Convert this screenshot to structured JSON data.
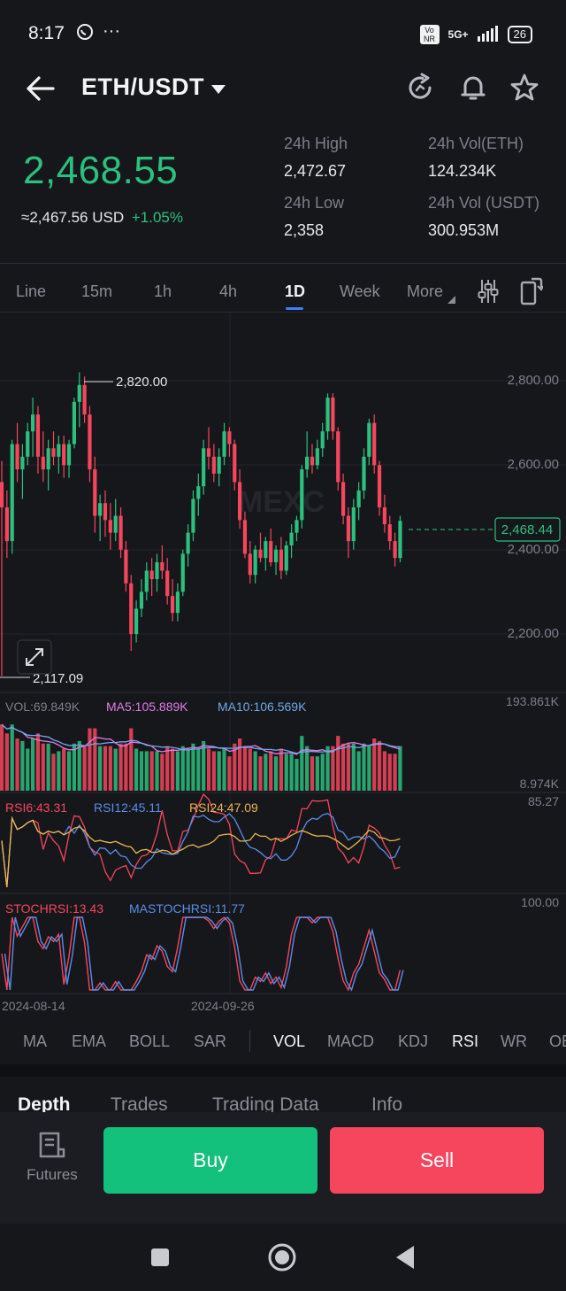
{
  "status_bar": {
    "time": "8:17",
    "network": "5G+",
    "battery": "26",
    "volte": "Vo NR"
  },
  "header": {
    "pair": "ETH/USDT"
  },
  "ticker": {
    "last_price": "2,468.55",
    "usd_price": "≈2,467.56 USD",
    "change_pct": "+1.05%",
    "high_label": "24h High",
    "high": "2,472.67",
    "low_label": "24h Low",
    "low": "2,358",
    "vol_eth_label": "24h Vol(ETH)",
    "vol_eth": "124.234K",
    "vol_usdt_label": "24h Vol (USDT)",
    "vol_usdt": "300.953M"
  },
  "timeframes": [
    "Line",
    "15m",
    "1h",
    "4h",
    "1D",
    "Week",
    "More"
  ],
  "active_timeframe": "1D",
  "chart": {
    "watermark": "MEXC",
    "y_ticks": [
      "2,800.00",
      "2,600.00",
      "2,400.00",
      "2,200.00"
    ],
    "current_price_tag": "2,468.44",
    "high_marker": "2,820.00",
    "low_marker": "2,117.09",
    "vol_legend": {
      "vol": "VOL:69.849K",
      "ma5": "MA5:105.889K",
      "ma10": "MA10:106.569K",
      "max": "193.861K",
      "min": "8.974K"
    },
    "rsi_legend": {
      "rsi6": "RSI6:43.31",
      "rsi12": "RSI12:45.11",
      "rsi24": "RSI24:47.09",
      "max": "85.27"
    },
    "stoch_legend": {
      "stoch": "STOCHRSI:13.43",
      "mastoch": "MASTOCHRSI:11.77",
      "max": "100.00"
    },
    "x_dates": [
      "2024-08-14",
      "2024-09-26"
    ]
  },
  "indicators": [
    "MA",
    "EMA",
    "BOLL",
    "SAR",
    "VOL",
    "MACD",
    "KDJ",
    "RSI",
    "WR",
    "OBV"
  ],
  "active_indicators": [
    "VOL",
    "RSI"
  ],
  "lower_tabs": [
    "Depth",
    "Trades",
    "Trading Data",
    "Info"
  ],
  "action_bar": {
    "futures_label": "Futures",
    "buy_label": "Buy",
    "sell_label": "Sell"
  },
  "colors": {
    "up": "#2bc07e",
    "down": "#f6465d",
    "accent": "#3e7ff6",
    "ma5": "#e07ce6",
    "ma10": "#6fa8e8",
    "rsi24": "#e8b64f"
  },
  "chart_data": {
    "type": "candlestick",
    "ylim": [
      2100,
      2850
    ],
    "candles": [
      {
        "o": 2560,
        "h": 2610,
        "l": 2100,
        "c": 2500
      },
      {
        "o": 2500,
        "h": 2540,
        "l": 2380,
        "c": 2420
      },
      {
        "o": 2420,
        "h": 2660,
        "l": 2390,
        "c": 2650
      },
      {
        "o": 2650,
        "h": 2700,
        "l": 2560,
        "c": 2590
      },
      {
        "o": 2590,
        "h": 2650,
        "l": 2520,
        "c": 2620
      },
      {
        "o": 2620,
        "h": 2700,
        "l": 2600,
        "c": 2680
      },
      {
        "o": 2680,
        "h": 2760,
        "l": 2620,
        "c": 2720
      },
      {
        "o": 2720,
        "h": 2740,
        "l": 2580,
        "c": 2620
      },
      {
        "o": 2620,
        "h": 2680,
        "l": 2560,
        "c": 2590
      },
      {
        "o": 2590,
        "h": 2660,
        "l": 2540,
        "c": 2640
      },
      {
        "o": 2640,
        "h": 2680,
        "l": 2600,
        "c": 2620
      },
      {
        "o": 2620,
        "h": 2670,
        "l": 2580,
        "c": 2650
      },
      {
        "o": 2650,
        "h": 2670,
        "l": 2570,
        "c": 2600
      },
      {
        "o": 2600,
        "h": 2660,
        "l": 2570,
        "c": 2650
      },
      {
        "o": 2650,
        "h": 2760,
        "l": 2640,
        "c": 2750
      },
      {
        "o": 2750,
        "h": 2820,
        "l": 2690,
        "c": 2790
      },
      {
        "o": 2790,
        "h": 2810,
        "l": 2700,
        "c": 2720
      },
      {
        "o": 2720,
        "h": 2740,
        "l": 2560,
        "c": 2590
      },
      {
        "o": 2590,
        "h": 2620,
        "l": 2440,
        "c": 2480
      },
      {
        "o": 2480,
        "h": 2530,
        "l": 2420,
        "c": 2510
      },
      {
        "o": 2510,
        "h": 2540,
        "l": 2430,
        "c": 2470
      },
      {
        "o": 2470,
        "h": 2510,
        "l": 2400,
        "c": 2440
      },
      {
        "o": 2440,
        "h": 2520,
        "l": 2420,
        "c": 2480
      },
      {
        "o": 2480,
        "h": 2500,
        "l": 2380,
        "c": 2400
      },
      {
        "o": 2400,
        "h": 2420,
        "l": 2300,
        "c": 2320
      },
      {
        "o": 2320,
        "h": 2340,
        "l": 2160,
        "c": 2200
      },
      {
        "o": 2200,
        "h": 2280,
        "l": 2180,
        "c": 2260
      },
      {
        "o": 2260,
        "h": 2330,
        "l": 2240,
        "c": 2300
      },
      {
        "o": 2300,
        "h": 2370,
        "l": 2280,
        "c": 2350
      },
      {
        "o": 2350,
        "h": 2380,
        "l": 2290,
        "c": 2330
      },
      {
        "o": 2330,
        "h": 2390,
        "l": 2300,
        "c": 2370
      },
      {
        "o": 2370,
        "h": 2410,
        "l": 2330,
        "c": 2350
      },
      {
        "o": 2350,
        "h": 2380,
        "l": 2270,
        "c": 2290
      },
      {
        "o": 2290,
        "h": 2330,
        "l": 2230,
        "c": 2250
      },
      {
        "o": 2250,
        "h": 2320,
        "l": 2230,
        "c": 2300
      },
      {
        "o": 2300,
        "h": 2400,
        "l": 2290,
        "c": 2390
      },
      {
        "o": 2390,
        "h": 2460,
        "l": 2360,
        "c": 2440
      },
      {
        "o": 2440,
        "h": 2540,
        "l": 2420,
        "c": 2520
      },
      {
        "o": 2520,
        "h": 2580,
        "l": 2480,
        "c": 2550
      },
      {
        "o": 2550,
        "h": 2660,
        "l": 2530,
        "c": 2640
      },
      {
        "o": 2640,
        "h": 2690,
        "l": 2590,
        "c": 2620
      },
      {
        "o": 2620,
        "h": 2650,
        "l": 2560,
        "c": 2580
      },
      {
        "o": 2580,
        "h": 2640,
        "l": 2550,
        "c": 2620
      },
      {
        "o": 2620,
        "h": 2700,
        "l": 2600,
        "c": 2680
      },
      {
        "o": 2680,
        "h": 2690,
        "l": 2620,
        "c": 2650
      },
      {
        "o": 2650,
        "h": 2660,
        "l": 2540,
        "c": 2560
      },
      {
        "o": 2560,
        "h": 2590,
        "l": 2450,
        "c": 2470
      },
      {
        "o": 2470,
        "h": 2490,
        "l": 2380,
        "c": 2390
      },
      {
        "o": 2390,
        "h": 2420,
        "l": 2320,
        "c": 2340
      },
      {
        "o": 2340,
        "h": 2410,
        "l": 2320,
        "c": 2400
      },
      {
        "o": 2400,
        "h": 2440,
        "l": 2370,
        "c": 2380
      },
      {
        "o": 2380,
        "h": 2430,
        "l": 2350,
        "c": 2420
      },
      {
        "o": 2420,
        "h": 2450,
        "l": 2360,
        "c": 2370
      },
      {
        "o": 2370,
        "h": 2410,
        "l": 2340,
        "c": 2400
      },
      {
        "o": 2400,
        "h": 2430,
        "l": 2330,
        "c": 2350
      },
      {
        "o": 2350,
        "h": 2420,
        "l": 2340,
        "c": 2410
      },
      {
        "o": 2410,
        "h": 2460,
        "l": 2380,
        "c": 2440
      },
      {
        "o": 2440,
        "h": 2480,
        "l": 2420,
        "c": 2470
      },
      {
        "o": 2470,
        "h": 2600,
        "l": 2450,
        "c": 2590
      },
      {
        "o": 2590,
        "h": 2680,
        "l": 2570,
        "c": 2620
      },
      {
        "o": 2620,
        "h": 2650,
        "l": 2580,
        "c": 2600
      },
      {
        "o": 2600,
        "h": 2660,
        "l": 2590,
        "c": 2640
      },
      {
        "o": 2640,
        "h": 2700,
        "l": 2620,
        "c": 2680
      },
      {
        "o": 2680,
        "h": 2770,
        "l": 2660,
        "c": 2760
      },
      {
        "o": 2760,
        "h": 2770,
        "l": 2660,
        "c": 2680
      },
      {
        "o": 2680,
        "h": 2690,
        "l": 2540,
        "c": 2560
      },
      {
        "o": 2560,
        "h": 2580,
        "l": 2460,
        "c": 2480
      },
      {
        "o": 2480,
        "h": 2500,
        "l": 2380,
        "c": 2420
      },
      {
        "o": 2420,
        "h": 2520,
        "l": 2400,
        "c": 2500
      },
      {
        "o": 2500,
        "h": 2560,
        "l": 2470,
        "c": 2540
      },
      {
        "o": 2540,
        "h": 2640,
        "l": 2520,
        "c": 2620
      },
      {
        "o": 2620,
        "h": 2710,
        "l": 2600,
        "c": 2700
      },
      {
        "o": 2700,
        "h": 2720,
        "l": 2580,
        "c": 2600
      },
      {
        "o": 2600,
        "h": 2610,
        "l": 2480,
        "c": 2500
      },
      {
        "o": 2500,
        "h": 2530,
        "l": 2440,
        "c": 2460
      },
      {
        "o": 2460,
        "h": 2480,
        "l": 2400,
        "c": 2420
      },
      {
        "o": 2420,
        "h": 2440,
        "l": 2360,
        "c": 2380
      },
      {
        "o": 2380,
        "h": 2480,
        "l": 2370,
        "c": 2468
      }
    ]
  }
}
